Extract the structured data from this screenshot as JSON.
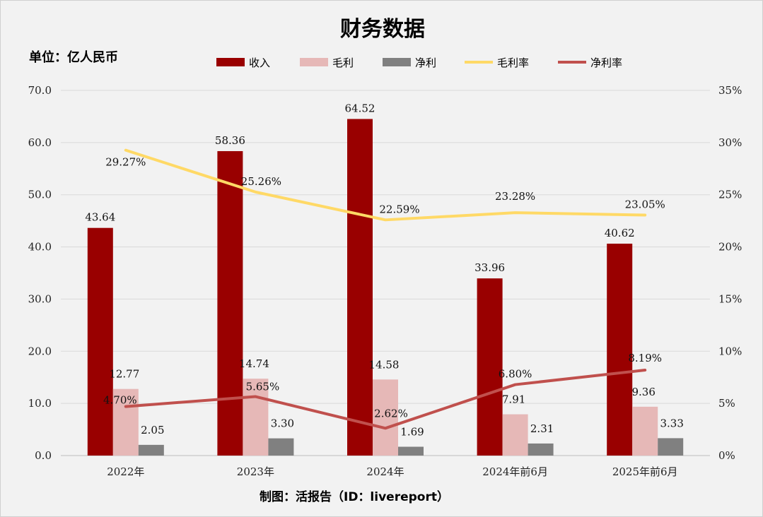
{
  "chart_data": {
    "type": "bar+line",
    "title": "财务数据",
    "unit_label": "单位：亿人民币",
    "credit": "制图：活报告（ID：livereport）",
    "categories": [
      "2022年",
      "2023年",
      "2024年",
      "2024年前6月",
      "2025年前6月"
    ],
    "bar_series": [
      {
        "name": "收入",
        "color": "#990000",
        "values": [
          43.64,
          58.36,
          64.52,
          33.96,
          40.62
        ],
        "labels": [
          "43.64",
          "58.36",
          "64.52",
          "33.96",
          "40.62"
        ]
      },
      {
        "name": "毛利",
        "color": "#e6b8b7",
        "values": [
          12.77,
          14.74,
          14.58,
          7.91,
          9.36
        ],
        "labels": [
          "12.77",
          "14.74",
          "14.58",
          "7.91",
          "9.36"
        ]
      },
      {
        "name": "净利",
        "color": "#808080",
        "values": [
          2.05,
          3.3,
          1.69,
          2.31,
          3.33
        ],
        "labels": [
          "2.05",
          "3.30",
          "1.69",
          "2.31",
          "3.33"
        ]
      }
    ],
    "line_series": [
      {
        "name": "毛利率",
        "color": "#ffd966",
        "values": [
          29.27,
          25.26,
          22.59,
          23.28,
          23.05
        ],
        "labels": [
          "29.27%",
          "25.26%",
          "22.59%",
          "23.28%",
          "23.05%"
        ]
      },
      {
        "name": "净利率",
        "color": "#c0504d",
        "values": [
          4.7,
          5.65,
          2.62,
          6.8,
          8.19
        ],
        "labels": [
          "4.70%",
          "5.65%",
          "2.62%",
          "6.80%",
          "8.19%"
        ]
      }
    ],
    "y_left": {
      "min": 0,
      "max": 70,
      "ticks": [
        "0.0",
        "10.0",
        "20.0",
        "30.0",
        "40.0",
        "50.0",
        "60.0",
        "70.0"
      ]
    },
    "y_right": {
      "min": 0,
      "max": 35,
      "ticks": [
        "0%",
        "5%",
        "10%",
        "15%",
        "20%",
        "25%",
        "30%",
        "35%"
      ]
    },
    "grid": true,
    "legend_position": "top"
  }
}
